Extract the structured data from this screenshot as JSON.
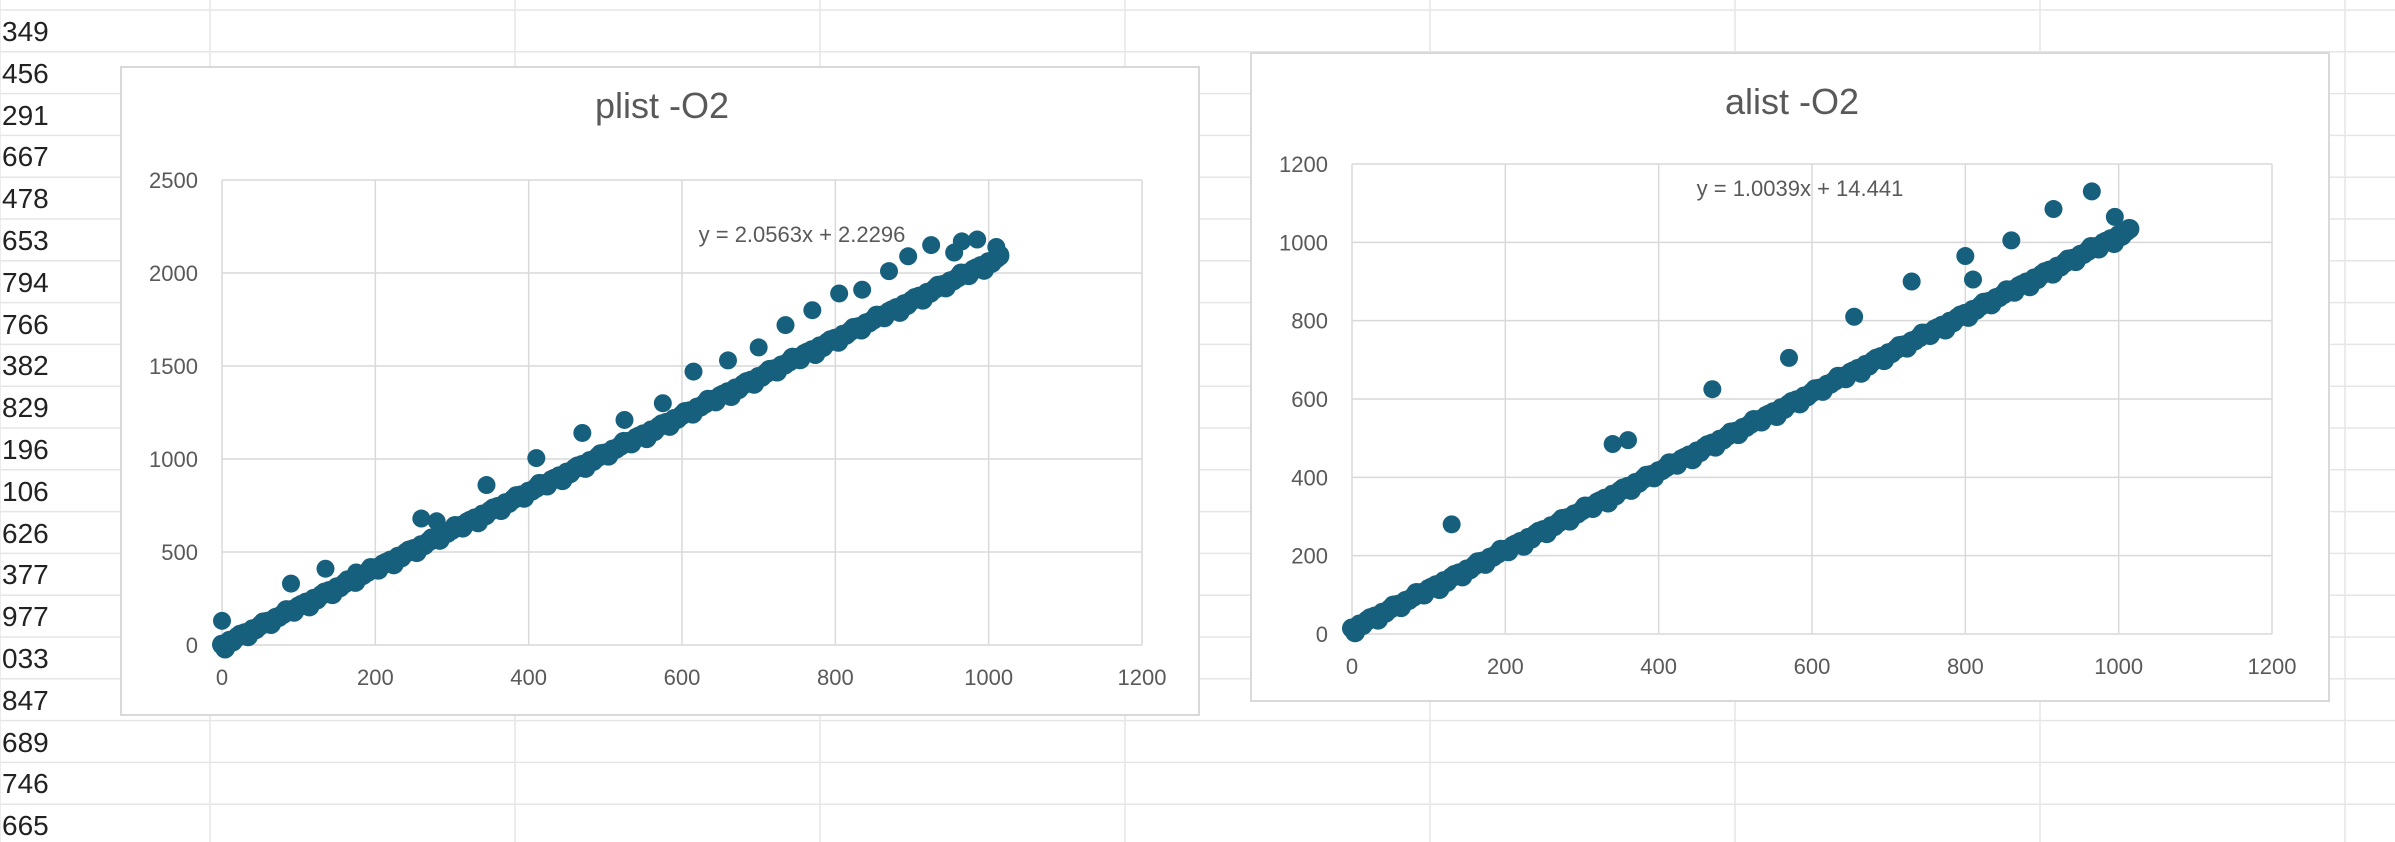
{
  "sheet": {
    "column_a_values": [
      "349",
      "456",
      "291",
      "667",
      "478",
      "653",
      "794",
      "766",
      "382",
      "829",
      "196",
      "106",
      "626",
      "377",
      "977",
      "033",
      "847",
      "689",
      "746",
      "665"
    ]
  },
  "colors": {
    "marker": "#17607d",
    "gridline": "#d9d9d9",
    "tick_text": "#595959",
    "sheet_grid": "#e6e6e6"
  },
  "chart_data": [
    {
      "type": "scatter",
      "title": "plist -O2",
      "xlabel": "",
      "ylabel": "",
      "xlim": [
        0,
        1200
      ],
      "ylim": [
        0,
        2500
      ],
      "x_ticks": [
        0,
        200,
        400,
        600,
        800,
        1000,
        1200
      ],
      "y_ticks": [
        0,
        500,
        1000,
        1500,
        2000,
        2500
      ],
      "grid": true,
      "legend": "none",
      "trendline": {
        "label": "y = 2.0563x + 2.2296",
        "slope": 2.0563,
        "intercept": 2.2296
      },
      "series": [
        {
          "trend_samples_x": [
            0,
            10,
            20,
            30,
            40,
            50,
            60,
            70,
            80,
            90,
            100,
            110,
            120,
            130,
            140,
            150,
            160,
            170,
            180,
            190,
            200,
            210,
            220,
            230,
            240,
            250,
            260,
            270,
            280,
            290,
            300,
            310,
            320,
            330,
            340,
            350,
            360,
            370,
            380,
            390,
            400,
            410,
            420,
            430,
            440,
            450,
            460,
            470,
            480,
            490,
            500,
            510,
            520,
            530,
            540,
            550,
            560,
            570,
            580,
            590,
            600,
            610,
            620,
            630,
            640,
            650,
            660,
            670,
            680,
            690,
            700,
            710,
            720,
            730,
            740,
            750,
            760,
            770,
            780,
            790,
            800,
            810,
            820,
            830,
            840,
            850,
            860,
            870,
            880,
            890,
            900,
            910,
            920,
            930,
            940,
            950,
            960,
            970,
            980,
            990,
            1000,
            1010
          ],
          "outliers": [
            [
              0,
              130
            ],
            [
              90,
              330
            ],
            [
              135,
              410
            ],
            [
              175,
              390
            ],
            [
              260,
              680
            ],
            [
              280,
              665
            ],
            [
              345,
              860
            ],
            [
              410,
              1005
            ],
            [
              470,
              1140
            ],
            [
              525,
              1210
            ],
            [
              575,
              1300
            ],
            [
              615,
              1470
            ],
            [
              660,
              1530
            ],
            [
              700,
              1600
            ],
            [
              735,
              1720
            ],
            [
              770,
              1800
            ],
            [
              805,
              1890
            ],
            [
              835,
              1910
            ],
            [
              870,
              2010
            ],
            [
              895,
              2090
            ],
            [
              925,
              2150
            ],
            [
              955,
              2110
            ],
            [
              965,
              2170
            ],
            [
              985,
              2180
            ],
            [
              1010,
              2140
            ],
            [
              1015,
              2100
            ]
          ]
        }
      ]
    },
    {
      "type": "scatter",
      "title": "alist -O2",
      "xlabel": "",
      "ylabel": "",
      "xlim": [
        0,
        1200
      ],
      "ylim": [
        0,
        1200
      ],
      "x_ticks": [
        0,
        200,
        400,
        600,
        800,
        1000,
        1200
      ],
      "y_ticks": [
        0,
        200,
        400,
        600,
        800,
        1000,
        1200
      ],
      "grid": true,
      "legend": "none",
      "trendline": {
        "label": "y = 1.0039x + 14.441",
        "slope": 1.0039,
        "intercept": 14.441
      },
      "series": [
        {
          "trend_samples_x": [
            0,
            10,
            20,
            30,
            40,
            50,
            60,
            70,
            80,
            90,
            100,
            110,
            120,
            130,
            140,
            150,
            160,
            170,
            180,
            190,
            200,
            210,
            220,
            230,
            240,
            250,
            260,
            270,
            280,
            290,
            300,
            310,
            320,
            330,
            340,
            350,
            360,
            370,
            380,
            390,
            400,
            410,
            420,
            430,
            440,
            450,
            460,
            470,
            480,
            490,
            500,
            510,
            520,
            530,
            540,
            550,
            560,
            570,
            580,
            590,
            600,
            610,
            620,
            630,
            640,
            650,
            660,
            670,
            680,
            690,
            700,
            710,
            720,
            730,
            740,
            750,
            760,
            770,
            780,
            790,
            800,
            810,
            820,
            830,
            840,
            850,
            860,
            870,
            880,
            890,
            900,
            910,
            920,
            930,
            940,
            950,
            960,
            970,
            980,
            990,
            1000,
            1010
          ],
          "outliers": [
            [
              130,
              280
            ],
            [
              340,
              485
            ],
            [
              360,
              495
            ],
            [
              470,
              625
            ],
            [
              570,
              705
            ],
            [
              655,
              810
            ],
            [
              730,
              900
            ],
            [
              800,
              965
            ],
            [
              810,
              905
            ],
            [
              860,
              1005
            ],
            [
              915,
              1085
            ],
            [
              965,
              1130
            ],
            [
              995,
              1065
            ]
          ]
        }
      ]
    }
  ]
}
